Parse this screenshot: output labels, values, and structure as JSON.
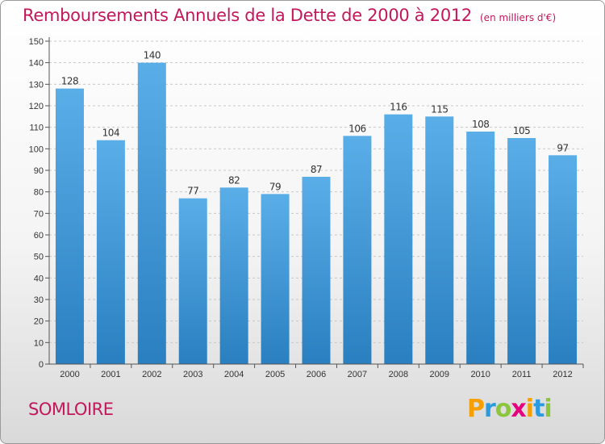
{
  "chart_data": {
    "type": "bar",
    "title": "Remboursements Annuels de la Dette de 2000 à 2012",
    "unit_note": "(en milliers d'€)",
    "categories": [
      "2000",
      "2001",
      "2002",
      "2003",
      "2004",
      "2005",
      "2006",
      "2007",
      "2008",
      "2009",
      "2010",
      "2011",
      "2012"
    ],
    "values": [
      128,
      104,
      140,
      77,
      82,
      79,
      87,
      106,
      116,
      115,
      108,
      105,
      97
    ],
    "ylim": [
      0,
      150
    ],
    "yticks": [
      0,
      10,
      20,
      30,
      40,
      50,
      60,
      70,
      80,
      90,
      100,
      110,
      120,
      130,
      140,
      150
    ],
    "grid": true,
    "bar_color_top": "#5aaee8",
    "bar_color_bottom": "#2a7fc0"
  },
  "commune": "SOMLOIRE",
  "logo": {
    "text": "Proxiti"
  }
}
